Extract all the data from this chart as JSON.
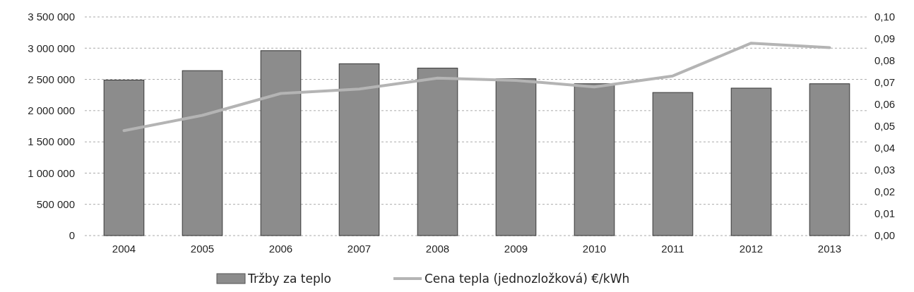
{
  "chart_data": {
    "type": "bar",
    "categories": [
      "2004",
      "2005",
      "2006",
      "2007",
      "2008",
      "2009",
      "2010",
      "2011",
      "2012",
      "2013"
    ],
    "series": [
      {
        "name": "Tržby za teplo",
        "color": "#8c8c8c",
        "values": [
          2490000,
          2640000,
          2960000,
          2750000,
          2680000,
          2510000,
          2430000,
          2290000,
          2360000,
          2430000
        ]
      },
      {
        "name": "Cena tepla (jednozložková) €/kWh",
        "type": "line",
        "axis": "y2",
        "color": "#b4b4b4",
        "values": [
          0.048,
          0.055,
          0.065,
          0.067,
          0.072,
          0.071,
          0.068,
          0.073,
          0.088,
          0.086
        ]
      }
    ],
    "ylim": [
      0,
      3500000
    ],
    "yticks": [
      0,
      {
        "value": 500000,
        "label": "500 000"
      },
      {
        "value": 1000000,
        "label": "1 000 000"
      },
      {
        "value": 1500000,
        "label": "1 500 000"
      },
      {
        "value": 2000000,
        "label": "2 000 000"
      },
      {
        "value": 2500000,
        "label": "2 500 000"
      },
      {
        "value": 3000000,
        "label": "3 000 000"
      },
      {
        "value": 3500000,
        "label": "3 500 000"
      }
    ],
    "y2lim": [
      0,
      0.1
    ],
    "y2ticks": [
      {
        "value": 0,
        "label": "0,00"
      },
      {
        "value": 0.01,
        "label": "0,01"
      },
      {
        "value": 0.02,
        "label": "0,02"
      },
      {
        "value": 0.03,
        "label": "0,03"
      },
      {
        "value": 0.04,
        "label": "0,04"
      },
      {
        "value": 0.05,
        "label": "0,05"
      },
      {
        "value": 0.06,
        "label": "0,06"
      },
      {
        "value": 0.07,
        "label": "0,07"
      },
      {
        "value": 0.08,
        "label": "0,08"
      },
      {
        "value": 0.09,
        "label": "0,09"
      },
      {
        "value": 0.1,
        "label": "0,10"
      }
    ],
    "grid": "y",
    "legend": "bottom",
    "marker": "none",
    "line_style": "solid"
  }
}
